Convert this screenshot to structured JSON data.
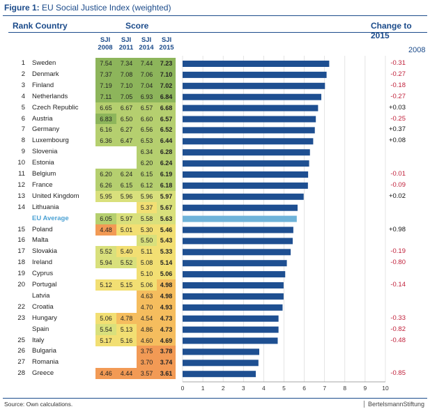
{
  "title": {
    "prefix": "Figure 1:",
    "text": "EU Social Justice Index (weighted)"
  },
  "headers": {
    "rank_country": "Rank Country",
    "score": "Score",
    "change": "Change to 2015",
    "change_year": "2008"
  },
  "columns": [
    {
      "top": "SJI",
      "bottom": "2008"
    },
    {
      "top": "SJI",
      "bottom": "2011"
    },
    {
      "top": "SJI",
      "bottom": "2014"
    },
    {
      "top": "SJI",
      "bottom": "2015"
    }
  ],
  "source": "Source: Own calculations.",
  "brand": "BertelsmannStiftung",
  "rows": [
    {
      "rank": "1",
      "country": "Sweden",
      "s2008": "7.54",
      "s2011": "7.34",
      "s2014": "7.44",
      "s2015": "7.23",
      "change": "-0.31"
    },
    {
      "rank": "2",
      "country": "Denmark",
      "s2008": "7.37",
      "s2011": "7.08",
      "s2014": "7.06",
      "s2015": "7.10",
      "change": "-0.27"
    },
    {
      "rank": "3",
      "country": "Finland",
      "s2008": "7.19",
      "s2011": "7.10",
      "s2014": "7.04",
      "s2015": "7.02",
      "change": "-0.18"
    },
    {
      "rank": "4",
      "country": "Netherlands",
      "s2008": "7.11",
      "s2011": "7.05",
      "s2014": "6.93",
      "s2015": "6.84",
      "change": "-0.27"
    },
    {
      "rank": "5",
      "country": "Czech Republic",
      "s2008": "6.65",
      "s2011": "6.67",
      "s2014": "6.57",
      "s2015": "6.68",
      "change": "+0.03"
    },
    {
      "rank": "6",
      "country": "Austria",
      "s2008": "6.83",
      "s2011": "6.50",
      "s2014": "6.60",
      "s2015": "6.57",
      "change": "-0.25"
    },
    {
      "rank": "7",
      "country": "Germany",
      "s2008": "6.16",
      "s2011": "6.27",
      "s2014": "6.56",
      "s2015": "6.52",
      "change": "+0.37"
    },
    {
      "rank": "8",
      "country": "Luxembourg",
      "s2008": "6.36",
      "s2011": "6.47",
      "s2014": "6.53",
      "s2015": "6.44",
      "change": "+0.08"
    },
    {
      "rank": "9",
      "country": "Slovenia",
      "s2008": "",
      "s2011": "",
      "s2014": "6.34",
      "s2015": "6.28",
      "change": ""
    },
    {
      "rank": "10",
      "country": "Estonia",
      "s2008": "",
      "s2011": "",
      "s2014": "6.20",
      "s2015": "6.24",
      "change": ""
    },
    {
      "rank": "11",
      "country": "Belgium",
      "s2008": "6.20",
      "s2011": "6.24",
      "s2014": "6.15",
      "s2015": "6.19",
      "change": "-0.01"
    },
    {
      "rank": "12",
      "country": "France",
      "s2008": "6.26",
      "s2011": "6.15",
      "s2014": "6.12",
      "s2015": "6.18",
      "change": "-0.09"
    },
    {
      "rank": "13",
      "country": "United Kingdom",
      "s2008": "5.95",
      "s2011": "5.96",
      "s2014": "5.96",
      "s2015": "5.97",
      "change": "+0.02"
    },
    {
      "rank": "14",
      "country": "Lithuania",
      "s2008": "",
      "s2011": "",
      "s2014": "5.37",
      "s2015": "5.67",
      "change": ""
    },
    {
      "rank": "",
      "country": "EU Average",
      "s2008": "6.05",
      "s2011": "5.97",
      "s2014": "5.58",
      "s2015": "5.63",
      "change": "",
      "avg": true
    },
    {
      "rank": "15",
      "country": "Poland",
      "s2008": "4.48",
      "s2011": "5.01",
      "s2014": "5.30",
      "s2015": "5.46",
      "change": "+0.98"
    },
    {
      "rank": "16",
      "country": "Malta",
      "s2008": "",
      "s2011": "",
      "s2014": "5.50",
      "s2015": "5.43",
      "change": ""
    },
    {
      "rank": "17",
      "country": "Slovakia",
      "s2008": "5.52",
      "s2011": "5.40",
      "s2014": "5.11",
      "s2015": "5.33",
      "change": "-0.19"
    },
    {
      "rank": "18",
      "country": "Ireland",
      "s2008": "5.94",
      "s2011": "5.52",
      "s2014": "5.08",
      "s2015": "5.14",
      "change": "-0.80"
    },
    {
      "rank": "19",
      "country": "Cyprus",
      "s2008": "",
      "s2011": "",
      "s2014": "5.10",
      "s2015": "5.06",
      "change": ""
    },
    {
      "rank": "20",
      "country": "Portugal",
      "s2008": "5.12",
      "s2011": "5.15",
      "s2014": "5.06",
      "s2015": "4.98",
      "change": "-0.14"
    },
    {
      "rank": "",
      "country": "Latvia",
      "s2008": "",
      "s2011": "",
      "s2014": "4.63",
      "s2015": "4.98",
      "change": ""
    },
    {
      "rank": "22",
      "country": "Croatia",
      "s2008": "",
      "s2011": "",
      "s2014": "4.70",
      "s2015": "4.93",
      "change": ""
    },
    {
      "rank": "23",
      "country": "Hungary",
      "s2008": "5.06",
      "s2011": "4.78",
      "s2014": "4.54",
      "s2015": "4.73",
      "change": "-0.33"
    },
    {
      "rank": "",
      "country": "Spain",
      "s2008": "5.54",
      "s2011": "5.13",
      "s2014": "4.86",
      "s2015": "4.73",
      "change": "-0.82"
    },
    {
      "rank": "25",
      "country": "Italy",
      "s2008": "5.17",
      "s2011": "5.16",
      "s2014": "4.60",
      "s2015": "4.69",
      "change": "-0.48"
    },
    {
      "rank": "26",
      "country": "Bulgaria",
      "s2008": "",
      "s2011": "",
      "s2014": "3.75",
      "s2015": "3.78",
      "change": ""
    },
    {
      "rank": "27",
      "country": "Romania",
      "s2008": "",
      "s2011": "",
      "s2014": "3.70",
      "s2015": "3.74",
      "change": ""
    },
    {
      "rank": "28",
      "country": "Greece",
      "s2008": "4.46",
      "s2011": "4.44",
      "s2014": "3.57",
      "s2015": "3.61",
      "change": "-0.85"
    }
  ],
  "chart_data": {
    "type": "bar",
    "orientation": "horizontal",
    "title": "EU Social Justice Index (weighted)",
    "xlabel": "",
    "ylabel": "",
    "xlim": [
      0,
      10
    ],
    "x_ticks": [
      "0",
      "1",
      "2",
      "3",
      "4",
      "5",
      "6",
      "7",
      "8",
      "9",
      "10"
    ],
    "grid": true,
    "categories": [
      "Sweden",
      "Denmark",
      "Finland",
      "Netherlands",
      "Czech Republic",
      "Austria",
      "Germany",
      "Luxembourg",
      "Slovenia",
      "Estonia",
      "Belgium",
      "France",
      "United Kingdom",
      "Lithuania",
      "EU Average",
      "Poland",
      "Malta",
      "Slovakia",
      "Ireland",
      "Cyprus",
      "Portugal",
      "Latvia",
      "Croatia",
      "Hungary",
      "Spain",
      "Italy",
      "Bulgaria",
      "Romania",
      "Greece"
    ],
    "values": [
      7.23,
      7.1,
      7.02,
      6.84,
      6.68,
      6.57,
      6.52,
      6.44,
      6.28,
      6.24,
      6.19,
      6.18,
      5.97,
      5.67,
      5.63,
      5.46,
      5.43,
      5.33,
      5.14,
      5.06,
      4.98,
      4.98,
      4.93,
      4.73,
      4.73,
      4.69,
      3.78,
      3.74,
      3.61
    ],
    "series_name": "SJI 2015",
    "colors": {
      "bar": "#1e4f91",
      "average_bar": "#6fb3d9"
    }
  },
  "heat_colors": {
    "g1": "#8db55b",
    "g2": "#b5cf6f",
    "y1": "#d9e07c",
    "y2": "#f2df73",
    "o1": "#f5bd5e",
    "o2": "#f29a55"
  }
}
